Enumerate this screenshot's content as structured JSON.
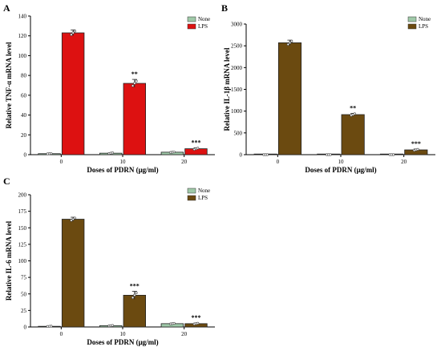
{
  "chart_data": [
    {
      "type": "bar",
      "panel_label": "A",
      "title": "",
      "xlabel": "Doses of PDRN (μg/ml)",
      "ylabel": "Relative TNF-α mRNA level",
      "categories": [
        "0",
        "10",
        "20"
      ],
      "ylim": [
        0,
        140
      ],
      "yticks": [
        0,
        20,
        40,
        60,
        80,
        100,
        120,
        140
      ],
      "legend_position": "top-right",
      "series": [
        {
          "name": "None",
          "values": [
            1,
            1.5,
            2.5
          ],
          "errors": [
            0.3,
            0.5,
            0.5
          ]
        },
        {
          "name": "LPS",
          "values": [
            123,
            72,
            6
          ],
          "errors": [
            3,
            4,
            1
          ]
        }
      ],
      "significance": [
        "",
        "**",
        "***"
      ],
      "colors": {
        "None": "#9fc9a8",
        "LPS": "#dd1111"
      }
    },
    {
      "type": "bar",
      "panel_label": "B",
      "title": "",
      "xlabel": "Doses of PDRN (μg/ml)",
      "ylabel": "Relative IL-1β mRNA level",
      "categories": [
        "0",
        "10",
        "20"
      ],
      "ylim": [
        0,
        3000
      ],
      "yticks": [
        0,
        500,
        1000,
        1500,
        2000,
        2500,
        3000
      ],
      "legend_position": "top-right",
      "series": [
        {
          "name": "None",
          "values": [
            1,
            1,
            1
          ],
          "errors": [
            0,
            0,
            0
          ]
        },
        {
          "name": "LPS",
          "values": [
            2570,
            920,
            110
          ],
          "errors": [
            60,
            30,
            20
          ]
        }
      ],
      "significance": [
        "",
        "**",
        "***"
      ],
      "colors": {
        "None": "#9fc9a8",
        "LPS": "#6b4a10"
      }
    },
    {
      "type": "bar",
      "panel_label": "C",
      "title": "",
      "xlabel": "Doses of PDRN (μg/ml)",
      "ylabel": "Relative IL-6 mRNA level",
      "categories": [
        "0",
        "10",
        "20"
      ],
      "ylim": [
        0,
        200
      ],
      "yticks": [
        0,
        25,
        50,
        75,
        100,
        125,
        150,
        175,
        200
      ],
      "legend_position": "top-right",
      "series": [
        {
          "name": "None",
          "values": [
            1,
            2,
            5
          ],
          "errors": [
            0.3,
            0.5,
            0.8
          ]
        },
        {
          "name": "LPS",
          "values": [
            163,
            48,
            5
          ],
          "errors": [
            3,
            6,
            1
          ]
        }
      ],
      "significance": [
        "",
        "***",
        "***"
      ],
      "colors": {
        "None": "#9fc9a8",
        "LPS": "#6b4a10"
      }
    }
  ]
}
